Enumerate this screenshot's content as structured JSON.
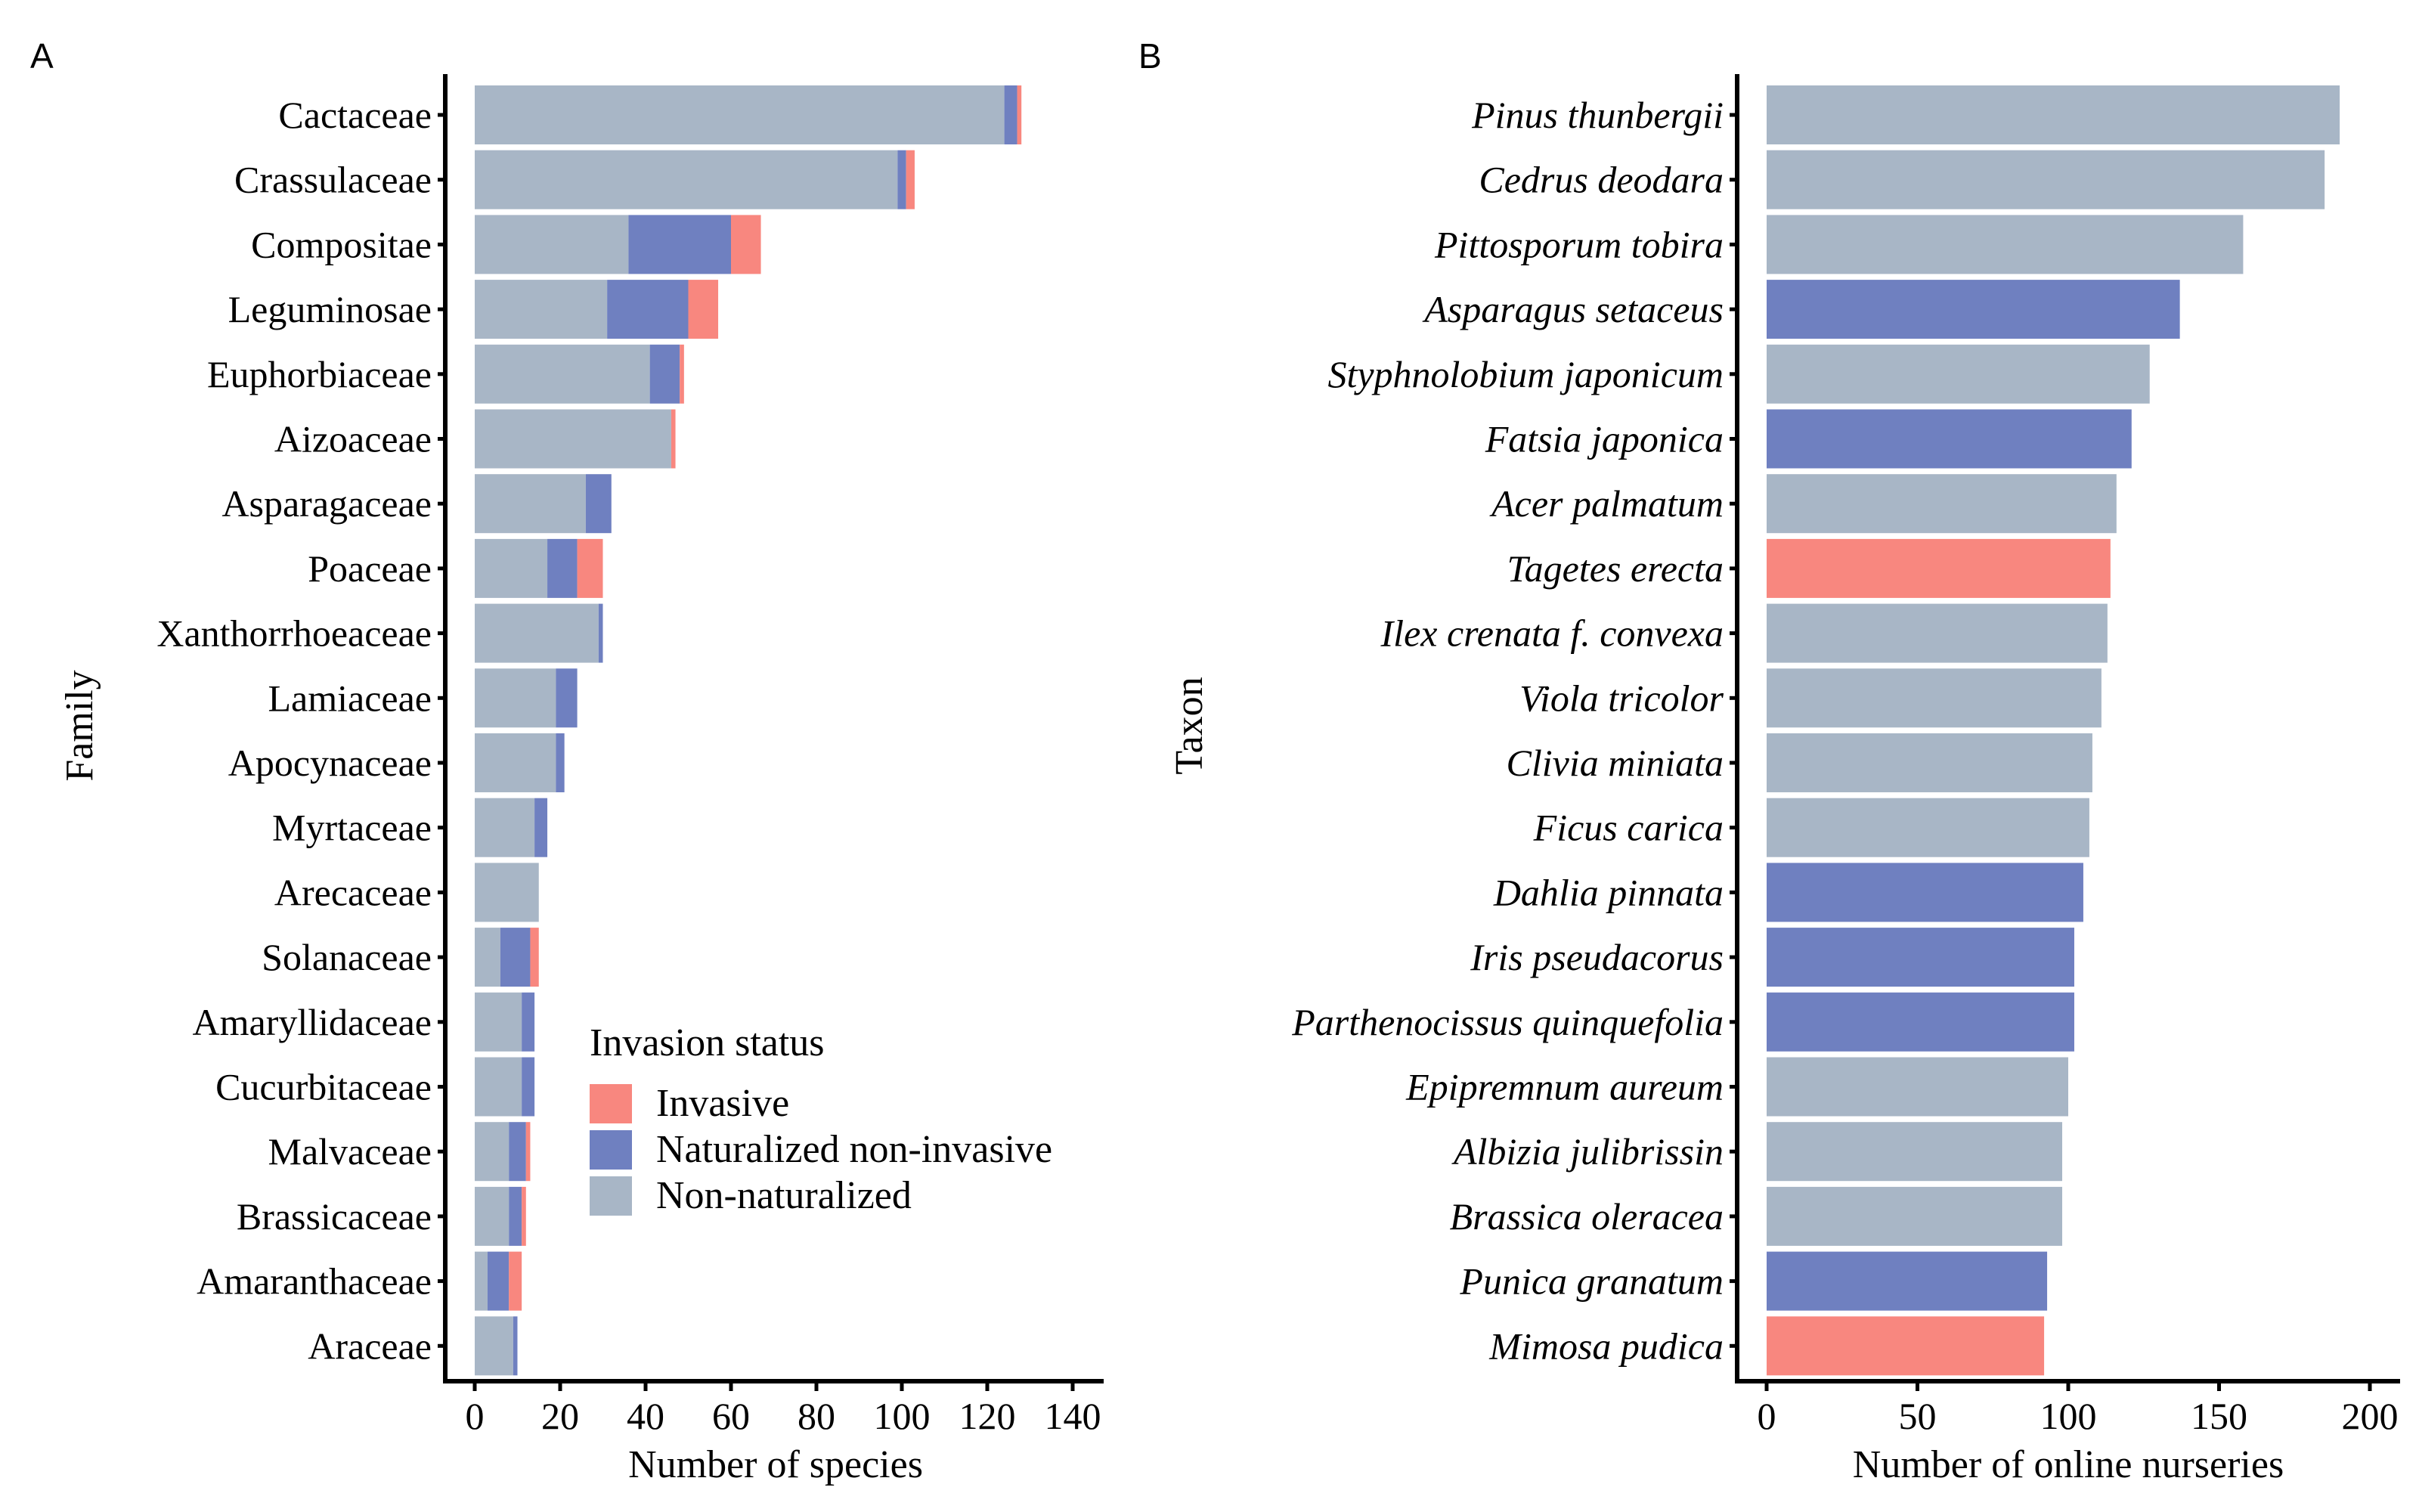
{
  "panels": {
    "a": {
      "tag": "A"
    },
    "b": {
      "tag": "B"
    }
  },
  "legend": {
    "title": "Invasion status",
    "items": [
      {
        "key": "invasive",
        "label": "Invasive",
        "color": "#F8877F"
      },
      {
        "key": "naturalized",
        "label": "Naturalized non-invasive",
        "color": "#6F80C0"
      },
      {
        "key": "non_naturalized",
        "label": "Non-naturalized",
        "color": "#A8B6C6"
      }
    ]
  },
  "chart_data": [
    {
      "type": "bar",
      "orientation": "horizontal",
      "stacked": true,
      "xlabel": "Number of species",
      "ylabel": "Family",
      "xlim": [
        0,
        140
      ],
      "x_ticks": [
        0,
        20,
        40,
        60,
        80,
        100,
        120,
        140
      ],
      "categories": [
        "Cactaceae",
        "Crassulaceae",
        "Compositae",
        "Leguminosae",
        "Euphorbiaceae",
        "Aizoaceae",
        "Asparagaceae",
        "Poaceae",
        "Xanthorrhoeaceae",
        "Lamiaceae",
        "Apocynaceae",
        "Myrtaceae",
        "Arecaceae",
        "Solanaceae",
        "Amaryllidaceae",
        "Cucurbitaceae",
        "Malvaceae",
        "Brassicaceae",
        "Amaranthaceae",
        "Araceae"
      ],
      "series": [
        {
          "name": "Non-naturalized",
          "color": "#A8B6C6",
          "values": [
            124,
            99,
            36,
            31,
            41,
            46,
            26,
            17,
            29,
            19,
            19,
            14,
            15,
            6,
            11,
            11,
            8,
            8,
            3,
            9
          ]
        },
        {
          "name": "Naturalized non-invasive",
          "color": "#6F80C0",
          "values": [
            3,
            2,
            24,
            19,
            7,
            0,
            6,
            7,
            1,
            5,
            2,
            3,
            0,
            7,
            3,
            3,
            4,
            3,
            5,
            1
          ]
        },
        {
          "name": "Invasive",
          "color": "#F8877F",
          "values": [
            1,
            2,
            7,
            7,
            1,
            1,
            0,
            6,
            0,
            0,
            0,
            0,
            0,
            2,
            0,
            0,
            1,
            1,
            3,
            0
          ]
        }
      ],
      "legend_position": "bottom-right, inside plot"
    },
    {
      "type": "bar",
      "orientation": "horizontal",
      "xlabel": "Number of online nurseries",
      "ylabel": "Taxon",
      "xlim": [
        0,
        200
      ],
      "x_ticks": [
        0,
        50,
        100,
        150,
        200
      ],
      "categories": [
        "Pinus thunbergii",
        "Cedrus deodara",
        "Pittosporum tobira",
        "Asparagus setaceus",
        "Styphnolobium japonicum",
        "Fatsia japonica",
        "Acer palmatum",
        "Tagetes erecta",
        "Ilex crenata f. convexa",
        "Viola tricolor",
        "Clivia miniata",
        "Ficus carica",
        "Dahlia pinnata",
        "Iris pseudacorus",
        "Parthenocissus quinquefolia",
        "Epipremnum aureum",
        "Albizia julibrissin",
        "Brassica oleracea",
        "Punica granatum",
        "Mimosa pudica"
      ],
      "values": [
        190,
        185,
        158,
        137,
        127,
        121,
        116,
        114,
        113,
        111,
        108,
        107,
        105,
        102,
        102,
        100,
        98,
        98,
        93,
        92
      ],
      "status": [
        "non_naturalized",
        "non_naturalized",
        "non_naturalized",
        "naturalized",
        "non_naturalized",
        "naturalized",
        "non_naturalized",
        "invasive",
        "non_naturalized",
        "non_naturalized",
        "non_naturalized",
        "non_naturalized",
        "naturalized",
        "naturalized",
        "naturalized",
        "non_naturalized",
        "non_naturalized",
        "non_naturalized",
        "naturalized",
        "invasive"
      ]
    }
  ]
}
